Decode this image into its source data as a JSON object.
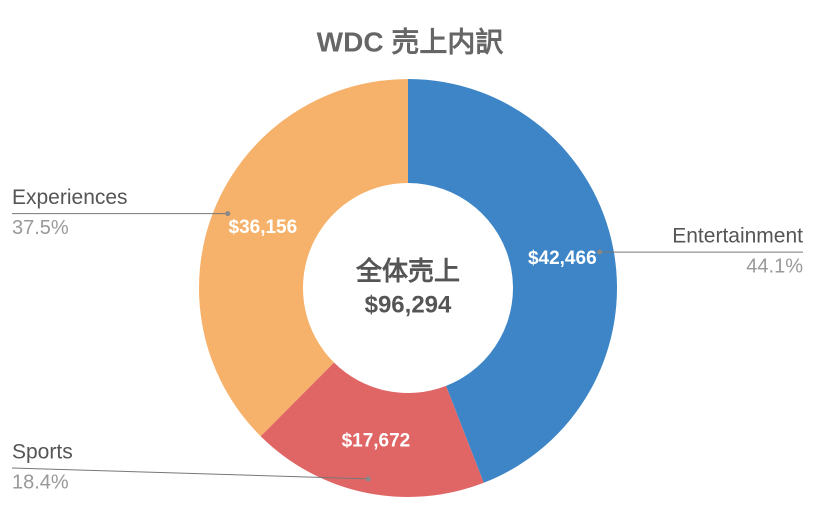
{
  "chart_data": {
    "type": "donut",
    "title": "WDC 売上内訳",
    "categories": [
      "Entertainment",
      "Sports",
      "Experiences"
    ],
    "values": [
      42466,
      17672,
      36156
    ],
    "value_labels": [
      "$42,466",
      "$17,672",
      "$36,156"
    ],
    "percent_labels": [
      "44.1%",
      "18.4%",
      "37.5%"
    ],
    "colors": [
      "#3d85c6",
      "#e06666",
      "#f6b26b"
    ],
    "center_title": "全体売上",
    "center_value_label": "$96,294"
  }
}
